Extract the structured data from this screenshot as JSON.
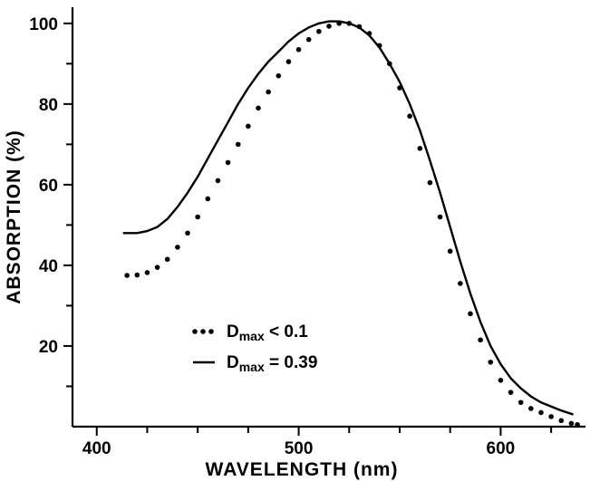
{
  "chart_data": {
    "type": "line",
    "xlabel": "WAVELENGTH (nm)",
    "ylabel": "ABSORPTION (%)",
    "xlim": [
      388,
      642
    ],
    "ylim": [
      0,
      104
    ],
    "x_ticks": [
      400,
      500,
      600
    ],
    "y_ticks": [
      20,
      40,
      60,
      80,
      100
    ],
    "x_minor_ticks": [
      425,
      450,
      475,
      525,
      550,
      575,
      625
    ],
    "y_minor_ticks": [
      10,
      30,
      50,
      70,
      90
    ],
    "grid": false,
    "legend_position": "lower-left",
    "series": [
      {
        "name": "Dmax < 0.1",
        "label_main": "D",
        "label_sub": "max",
        "label_rest": " < 0.1",
        "style": "dotted",
        "x": [
          415,
          420,
          425,
          430,
          435,
          440,
          445,
          450,
          455,
          460,
          465,
          470,
          475,
          480,
          485,
          490,
          495,
          500,
          505,
          510,
          515,
          520,
          525,
          530,
          535,
          540,
          545,
          550,
          555,
          560,
          565,
          570,
          575,
          580,
          585,
          590,
          595,
          600,
          605,
          610,
          615,
          620,
          625,
          630,
          635,
          638
        ],
        "y": [
          37.5,
          37.6,
          38.2,
          39.5,
          41.5,
          44.5,
          48,
          52,
          56.5,
          61,
          65.5,
          70,
          74.5,
          79,
          83,
          87,
          90.5,
          93.5,
          96,
          98,
          99.3,
          100,
          100,
          99.2,
          97.5,
          94.5,
          90,
          84,
          77,
          69,
          60.5,
          52,
          43.5,
          35.5,
          28,
          21.5,
          16,
          11.5,
          8.5,
          6,
          4.5,
          3.5,
          2.5,
          1.5,
          0.8,
          0.5
        ]
      },
      {
        "name": "Dmax = 0.39",
        "label_main": "D",
        "label_sub": "max",
        "label_rest": " = 0.39",
        "style": "solid",
        "x": [
          413,
          420,
          425,
          430,
          435,
          440,
          445,
          450,
          455,
          460,
          465,
          470,
          475,
          480,
          485,
          490,
          495,
          500,
          505,
          510,
          515,
          520,
          525,
          530,
          535,
          540,
          545,
          550,
          555,
          560,
          565,
          570,
          575,
          580,
          585,
          590,
          595,
          600,
          605,
          610,
          615,
          620,
          625,
          630,
          636
        ],
        "y": [
          48,
          48,
          48.5,
          49.5,
          51.5,
          54.5,
          58,
          62,
          66.5,
          71,
          75.5,
          80,
          84,
          87.5,
          90.5,
          93,
          95.5,
          97.5,
          99,
          100,
          100.5,
          100.5,
          100,
          99,
          97,
          94,
          90,
          85.5,
          80,
          73.5,
          66,
          58,
          49.5,
          41,
          33,
          26,
          20,
          15.5,
          12,
          9.5,
          7.5,
          6,
          5,
          4,
          3
        ]
      }
    ]
  }
}
